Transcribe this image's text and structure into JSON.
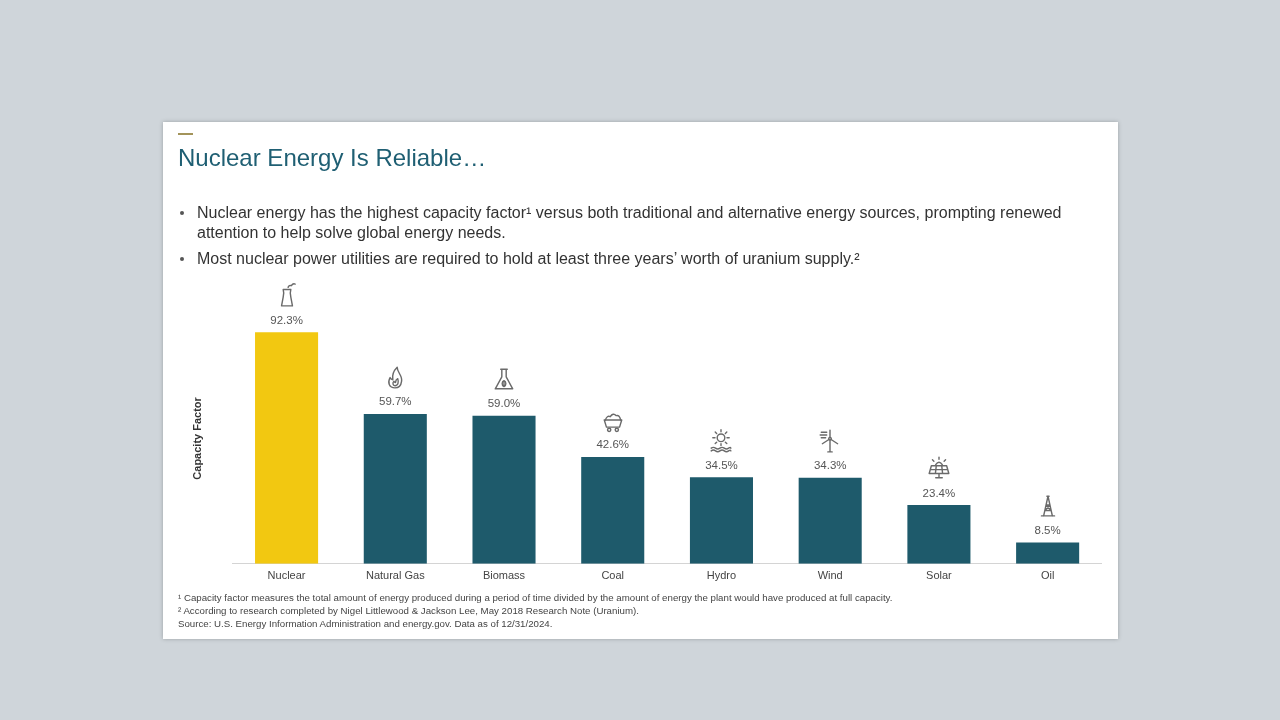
{
  "chart_data": {
    "type": "bar",
    "title": "Nuclear Energy Is Reliable…",
    "ylabel": "Capacity Factor",
    "categories": [
      "Nuclear",
      "Natural Gas",
      "Biomass",
      "Coal",
      "Hydro",
      "Wind",
      "Solar",
      "Oil"
    ],
    "values": [
      92.3,
      59.7,
      59.0,
      42.6,
      34.5,
      34.3,
      23.4,
      8.5
    ],
    "colors": [
      "#f2c811",
      "#1e5a6b",
      "#1e5a6b",
      "#1e5a6b",
      "#1e5a6b",
      "#1e5a6b",
      "#1e5a6b",
      "#1e5a6b"
    ],
    "value_labels": [
      "92.3%",
      "59.7%",
      "59.0%",
      "42.6%",
      "34.5%",
      "34.3%",
      "23.4%",
      "8.5%"
    ],
    "annotations": [
      "Nuclear energy has the highest capacity factor¹ versus both traditional and alternative energy sources, prompting renewed attention to help solve global energy needs.",
      "Most nuclear power utilities are required to hold at least three years’ worth of uranium supply.²",
      "¹ Capacity factor measures the total amount of energy produced during a period of time divided by the amount of energy the plant would have produced at full capacity.",
      "² According to research completed by Nigel Littlewood & Jackson Lee, May 2018 Research Note (Uranium).",
      "Source: U.S. Energy Information Administration and energy.gov. Data as of 12/31/2024."
    ]
  }
}
